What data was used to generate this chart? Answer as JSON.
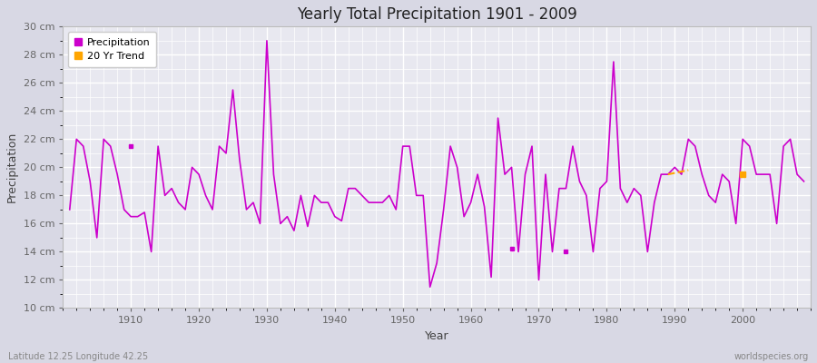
{
  "title": "Yearly Total Precipitation 1901 - 2009",
  "xlabel": "Year",
  "ylabel": "Precipitation",
  "subtitle": "Latitude 12.25 Longitude 42.25",
  "watermark": "worldspecies.org",
  "ylim": [
    10,
    30
  ],
  "xlim": [
    1900,
    2010
  ],
  "ytick_labels": [
    "10 cm",
    "12 cm",
    "14 cm",
    "16 cm",
    "18 cm",
    "20 cm",
    "22 cm",
    "24 cm",
    "26 cm",
    "28 cm",
    "30 cm"
  ],
  "ytick_values": [
    10,
    12,
    14,
    16,
    18,
    20,
    22,
    24,
    26,
    28,
    30
  ],
  "fig_bg_color": "#d8d8e4",
  "plot_bg_color": "#e8e8f0",
  "line_color": "#cc00cc",
  "trend_color": "#ffa500",
  "years": [
    1901,
    1902,
    1903,
    1904,
    1905,
    1906,
    1907,
    1908,
    1909,
    1910,
    1911,
    1912,
    1913,
    1914,
    1915,
    1916,
    1917,
    1918,
    1919,
    1920,
    1921,
    1922,
    1923,
    1924,
    1925,
    1926,
    1927,
    1928,
    1929,
    1930,
    1931,
    1932,
    1933,
    1934,
    1935,
    1936,
    1937,
    1938,
    1939,
    1940,
    1941,
    1942,
    1943,
    1944,
    1945,
    1946,
    1947,
    1948,
    1949,
    1950,
    1951,
    1952,
    1953,
    1954,
    1955,
    1956,
    1957,
    1958,
    1959,
    1960,
    1961,
    1962,
    1963,
    1964,
    1965,
    1966,
    1967,
    1968,
    1969,
    1970,
    1971,
    1972,
    1973,
    1974,
    1975,
    1976,
    1977,
    1978,
    1979,
    1980,
    1981,
    1982,
    1983,
    1984,
    1985,
    1986,
    1987,
    1988,
    1989,
    1990,
    1991,
    1992,
    1993,
    1994,
    1995,
    1996,
    1997,
    1998,
    1999,
    2000,
    2001,
    2002,
    2003,
    2004,
    2005,
    2006,
    2007,
    2008,
    2009
  ],
  "precip": [
    17.0,
    22.0,
    21.5,
    19.0,
    15.0,
    22.0,
    21.5,
    19.5,
    17.0,
    16.5,
    16.5,
    16.8,
    14.0,
    21.5,
    18.0,
    18.5,
    17.5,
    17.0,
    20.0,
    19.5,
    18.0,
    17.0,
    21.5,
    21.0,
    25.5,
    20.5,
    17.0,
    17.5,
    16.0,
    29.0,
    19.5,
    16.0,
    16.5,
    15.5,
    18.0,
    15.8,
    18.0,
    17.5,
    17.5,
    16.5,
    16.2,
    18.5,
    18.5,
    18.0,
    17.5,
    17.5,
    17.5,
    18.0,
    17.0,
    21.5,
    21.5,
    18.0,
    18.0,
    11.5,
    13.2,
    17.0,
    21.5,
    20.0,
    16.5,
    17.5,
    19.5,
    17.2,
    12.2,
    23.5,
    19.5,
    20.0,
    14.0,
    19.5,
    21.5,
    12.0,
    19.5,
    14.0,
    18.5,
    18.5,
    21.5,
    19.0,
    18.0,
    14.0,
    18.5,
    19.0,
    27.5,
    18.5,
    17.5,
    18.5,
    18.0,
    14.0,
    17.5,
    19.5,
    19.5,
    20.0,
    19.5,
    22.0,
    21.5,
    19.5,
    18.0,
    17.5,
    19.5,
    19.0,
    16.0,
    22.0,
    21.5,
    19.5,
    19.5,
    19.5,
    16.0,
    21.5,
    22.0,
    19.5,
    19.0
  ],
  "trend_segment_years": [
    1989,
    1992
  ],
  "trend_segment_values": [
    19.5,
    19.8
  ],
  "trend_dot_year": 2000,
  "trend_dot_value": 19.5,
  "isolated_points": [
    {
      "year": 1910,
      "value": 21.5
    },
    {
      "year": 1966,
      "value": 14.2
    },
    {
      "year": 1974,
      "value": 14.0
    }
  ]
}
